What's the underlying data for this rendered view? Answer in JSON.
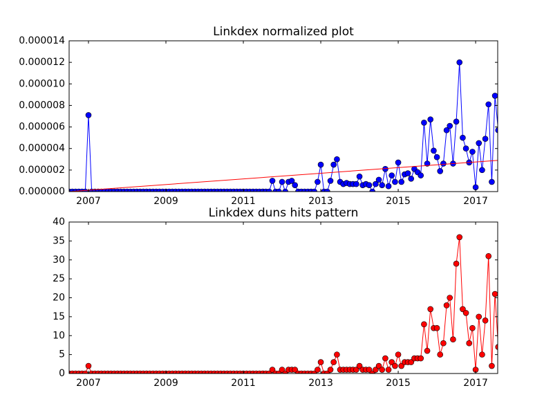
{
  "chart_data": [
    {
      "type": "line",
      "title": "Linkdex normalized plot",
      "x": [
        2006.5,
        2006.583,
        2006.667,
        2006.75,
        2006.833,
        2006.917,
        2007,
        2007.083,
        2007.167,
        2007.25,
        2007.333,
        2007.417,
        2007.5,
        2007.583,
        2007.667,
        2007.75,
        2007.833,
        2007.917,
        2008,
        2008.083,
        2008.167,
        2008.25,
        2008.333,
        2008.417,
        2008.5,
        2008.583,
        2008.667,
        2008.75,
        2008.833,
        2008.917,
        2009,
        2009.083,
        2009.167,
        2009.25,
        2009.333,
        2009.417,
        2009.5,
        2009.583,
        2009.667,
        2009.75,
        2009.833,
        2009.917,
        2010,
        2010.083,
        2010.167,
        2010.25,
        2010.333,
        2010.417,
        2010.5,
        2010.583,
        2010.667,
        2010.75,
        2010.833,
        2010.917,
        2011,
        2011.083,
        2011.167,
        2011.25,
        2011.333,
        2011.417,
        2011.5,
        2011.583,
        2011.667,
        2011.75,
        2011.833,
        2011.917,
        2012,
        2012.083,
        2012.167,
        2012.25,
        2012.333,
        2012.417,
        2012.5,
        2012.583,
        2012.667,
        2012.75,
        2012.833,
        2012.917,
        2013,
        2013.083,
        2013.167,
        2013.25,
        2013.333,
        2013.417,
        2013.5,
        2013.583,
        2013.667,
        2013.75,
        2013.833,
        2013.917,
        2014,
        2014.083,
        2014.167,
        2014.25,
        2014.333,
        2014.417,
        2014.5,
        2014.583,
        2014.667,
        2014.75,
        2014.833,
        2014.917,
        2015,
        2015.083,
        2015.167,
        2015.25,
        2015.333,
        2015.417,
        2015.5,
        2015.583,
        2015.667,
        2015.75,
        2015.833,
        2015.917,
        2016,
        2016.083,
        2016.167,
        2016.25,
        2016.333,
        2016.417,
        2016.5,
        2016.583,
        2016.667,
        2016.75,
        2016.833,
        2016.917,
        2017,
        2017.083,
        2017.167,
        2017.25,
        2017.333,
        2017.417,
        2017.5,
        2017.583
      ],
      "series": [
        {
          "color": "#0000ff",
          "marker": true,
          "values": [
            0,
            0,
            0,
            0,
            0,
            0,
            7.1e-06,
            0,
            0,
            0,
            0,
            0,
            0,
            0,
            0,
            0,
            0,
            0,
            0,
            0,
            0,
            0,
            0,
            0,
            0,
            0,
            0,
            0,
            0,
            0,
            0,
            0,
            0,
            0,
            0,
            0,
            0,
            0,
            0,
            0,
            0,
            0,
            0,
            0,
            0,
            0,
            0,
            0,
            0,
            0,
            0,
            0,
            0,
            0,
            0,
            0,
            0,
            0,
            0,
            0,
            0,
            0,
            0,
            1e-06,
            0,
            0,
            9e-07,
            0,
            9e-07,
            1e-06,
            6e-07,
            0,
            0,
            0,
            0,
            0,
            0,
            9e-07,
            2.5e-06,
            0,
            0,
            1e-06,
            2.5e-06,
            3e-06,
            9e-07,
            7e-07,
            8e-07,
            7e-07,
            7e-07,
            7e-07,
            1.4e-06,
            6e-07,
            7e-07,
            6e-07,
            0,
            7e-07,
            1.1e-06,
            6e-07,
            2.1e-06,
            5e-07,
            1.5e-06,
            9e-07,
            2.7e-06,
            9e-07,
            1.6e-06,
            1.7e-06,
            1.2e-06,
            2.1e-06,
            1.8e-06,
            1.5e-06,
            6.4e-06,
            2.6e-06,
            6.7e-06,
            3.8e-06,
            3.2e-06,
            1.9e-06,
            2.6e-06,
            5.7e-06,
            6.1e-06,
            2.6e-06,
            6.5e-06,
            1.2e-05,
            5e-06,
            4e-06,
            2.7e-06,
            3.7e-06,
            4e-07,
            4.5e-06,
            2e-06,
            4.9e-06,
            8.1e-06,
            9e-07,
            8.9e-06,
            5.7e-06
          ]
        },
        {
          "color": "#ff0000",
          "marker": false,
          "x": [
            2006.5,
            2017.57
          ],
          "values": [
            0,
            2.9e-06
          ]
        }
      ],
      "xlim": [
        2006.5,
        2017.57
      ],
      "xticks": [
        2007,
        2009,
        2011,
        2013,
        2015,
        2017
      ],
      "ylim": [
        0,
        1.4e-05
      ],
      "yticks": [
        {
          "value": 0,
          "label": "0.000000"
        },
        {
          "value": 2e-06,
          "label": "0.000002"
        },
        {
          "value": 4e-06,
          "label": "0.000004"
        },
        {
          "value": 6e-06,
          "label": "0.000006"
        },
        {
          "value": 8e-06,
          "label": "0.000008"
        },
        {
          "value": 1e-05,
          "label": "0.000010"
        },
        {
          "value": 1.2e-05,
          "label": "0.000012"
        },
        {
          "value": 1.4e-05,
          "label": "0.000014"
        }
      ]
    },
    {
      "type": "line",
      "title": "Linkdex duns hits pattern",
      "x": [
        2006.5,
        2006.583,
        2006.667,
        2006.75,
        2006.833,
        2006.917,
        2007,
        2007.083,
        2007.167,
        2007.25,
        2007.333,
        2007.417,
        2007.5,
        2007.583,
        2007.667,
        2007.75,
        2007.833,
        2007.917,
        2008,
        2008.083,
        2008.167,
        2008.25,
        2008.333,
        2008.417,
        2008.5,
        2008.583,
        2008.667,
        2008.75,
        2008.833,
        2008.917,
        2009,
        2009.083,
        2009.167,
        2009.25,
        2009.333,
        2009.417,
        2009.5,
        2009.583,
        2009.667,
        2009.75,
        2009.833,
        2009.917,
        2010,
        2010.083,
        2010.167,
        2010.25,
        2010.333,
        2010.417,
        2010.5,
        2010.583,
        2010.667,
        2010.75,
        2010.833,
        2010.917,
        2011,
        2011.083,
        2011.167,
        2011.25,
        2011.333,
        2011.417,
        2011.5,
        2011.583,
        2011.667,
        2011.75,
        2011.833,
        2011.917,
        2012,
        2012.083,
        2012.167,
        2012.25,
        2012.333,
        2012.417,
        2012.5,
        2012.583,
        2012.667,
        2012.75,
        2012.833,
        2012.917,
        2013,
        2013.083,
        2013.167,
        2013.25,
        2013.333,
        2013.417,
        2013.5,
        2013.583,
        2013.667,
        2013.75,
        2013.833,
        2013.917,
        2014,
        2014.083,
        2014.167,
        2014.25,
        2014.333,
        2014.417,
        2014.5,
        2014.583,
        2014.667,
        2014.75,
        2014.833,
        2014.917,
        2015,
        2015.083,
        2015.167,
        2015.25,
        2015.333,
        2015.417,
        2015.5,
        2015.583,
        2015.667,
        2015.75,
        2015.833,
        2015.917,
        2016,
        2016.083,
        2016.167,
        2016.25,
        2016.333,
        2016.417,
        2016.5,
        2016.583,
        2016.667,
        2016.75,
        2016.833,
        2016.917,
        2017,
        2017.083,
        2017.167,
        2017.25,
        2017.333,
        2017.417,
        2017.5,
        2017.583
      ],
      "series": [
        {
          "color": "#ff0000",
          "marker": true,
          "values": [
            0,
            0,
            0,
            0,
            0,
            0,
            2,
            0,
            0,
            0,
            0,
            0,
            0,
            0,
            0,
            0,
            0,
            0,
            0,
            0,
            0,
            0,
            0,
            0,
            0,
            0,
            0,
            0,
            0,
            0,
            0,
            0,
            0,
            0,
            0,
            0,
            0,
            0,
            0,
            0,
            0,
            0,
            0,
            0,
            0,
            0,
            0,
            0,
            0,
            0,
            0,
            0,
            0,
            0,
            0,
            0,
            0,
            0,
            0,
            0,
            0,
            0,
            0,
            1,
            0,
            0,
            1,
            0,
            1,
            1,
            1,
            0,
            0,
            0,
            0,
            0,
            0,
            1,
            3,
            0,
            0,
            1,
            3,
            5,
            1,
            1,
            1,
            1,
            1,
            1,
            2,
            1,
            1,
            1,
            0,
            1,
            2,
            1,
            4,
            1,
            3,
            2,
            5,
            2,
            3,
            3,
            3,
            4,
            4,
            4,
            13,
            6,
            17,
            12,
            12,
            5,
            8,
            18,
            20,
            9,
            29,
            36,
            17,
            16,
            8,
            12,
            1,
            15,
            5,
            14,
            31,
            2,
            21,
            7
          ]
        }
      ],
      "xlim": [
        2006.5,
        2017.57
      ],
      "xticks": [
        2007,
        2009,
        2011,
        2013,
        2015,
        2017
      ],
      "ylim": [
        0,
        40
      ],
      "yticks": [
        0,
        5,
        10,
        15,
        20,
        25,
        30,
        35,
        40
      ]
    }
  ]
}
